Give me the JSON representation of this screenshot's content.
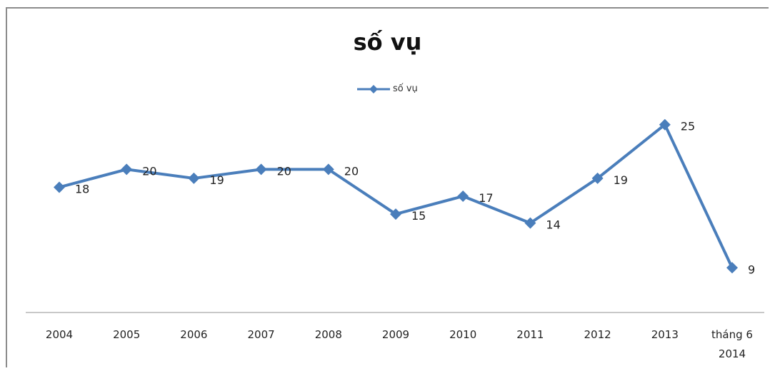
{
  "chart_data": {
    "type": "line",
    "title": "số vụ",
    "categories": [
      "2004",
      "2005",
      "2006",
      "2007",
      "2008",
      "2009",
      "2010",
      "2011",
      "2012",
      "2013",
      "tháng 6\n2014"
    ],
    "series": [
      {
        "name": "số vụ",
        "values": [
          18,
          20,
          19,
          20,
          20,
          15,
          17,
          14,
          19,
          25,
          9
        ]
      }
    ],
    "data_labels": true,
    "legend_position": "top",
    "grid": false,
    "ylim": [
      4,
      30
    ],
    "xlabel": "",
    "ylabel": "",
    "colors": {
      "line": "#4a7ebb",
      "axis": "#c8c8c8"
    }
  }
}
